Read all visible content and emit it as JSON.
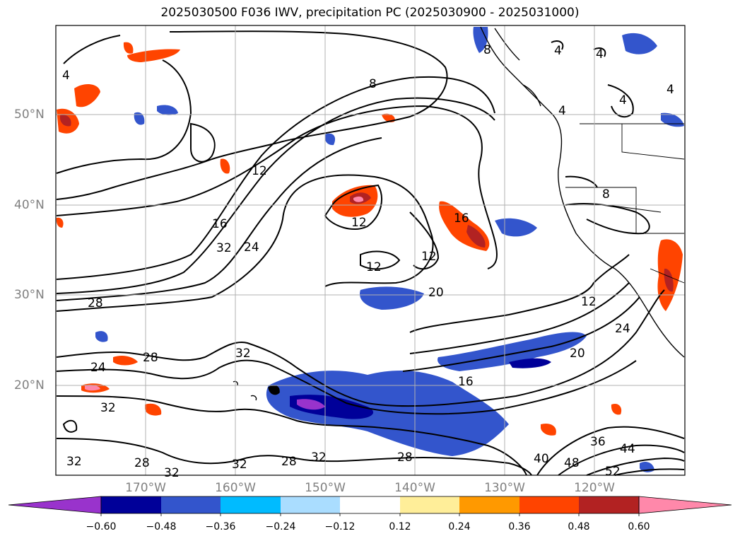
{
  "title": "2025030500 F036 IWV, precipitation PC (2025030900 - 2025031000)",
  "map": {
    "projection": "cylindrical",
    "lon_range": [
      "180°W",
      "110°W"
    ],
    "lat_range": [
      "10°N",
      "60°N"
    ],
    "lon_labels": [
      "170°W",
      "160°W",
      "150°W",
      "140°W",
      "130°W",
      "120°W"
    ],
    "lat_labels": [
      "50°N",
      "40°N",
      "30°N",
      "20°N"
    ],
    "grid": true,
    "iwv_contour_labels": [
      "4",
      "4",
      "4",
      "4",
      "4",
      "4",
      "8",
      "8",
      "8",
      "12",
      "12",
      "12",
      "12",
      "12",
      "16",
      "16",
      "16",
      "20",
      "20",
      "24",
      "24",
      "24",
      "28",
      "28",
      "28",
      "28",
      "28",
      "32",
      "32",
      "32",
      "32",
      "32",
      "32",
      "32",
      "36",
      "40",
      "44",
      "48",
      "52"
    ]
  },
  "colorbar": {
    "tick_labels": [
      "−0.60",
      "−0.48",
      "−0.36",
      "−0.24",
      "−0.12",
      "0.12",
      "0.24",
      "0.36",
      "0.48",
      "0.60"
    ],
    "colors": [
      "#9933cc",
      "#000099",
      "#3355cc",
      "#00bbff",
      "#aaddff",
      "#ffffff",
      "#ffee99",
      "#ff9900",
      "#ff4400",
      "#b22222",
      "#ff88aa"
    ],
    "extend": "both"
  }
}
